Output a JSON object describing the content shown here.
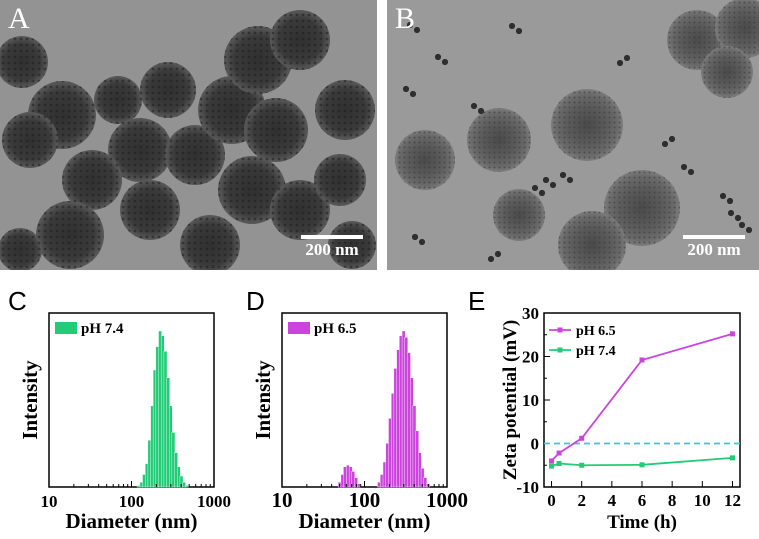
{
  "panels": {
    "a": {
      "letter": "A",
      "scale_label": "200 nm"
    },
    "b": {
      "letter": "B",
      "scale_label": "200 nm"
    },
    "c": {
      "letter": "C"
    },
    "d": {
      "letter": "D"
    },
    "e": {
      "letter": "E"
    }
  },
  "colors": {
    "green": "#22cc77",
    "magenta": "#cc44dd",
    "zero_line": "#33cccc"
  },
  "chart_data": [
    {
      "type": "bar",
      "panel": "C",
      "xlabel": "Diameter (nm)",
      "ylabel": "Intensity",
      "xscale": "log",
      "xlim": [
        10,
        1000
      ],
      "xticks": [
        "10",
        "100",
        "1000"
      ],
      "legend": "pH 7.4",
      "series": [
        {
          "name": "pH 7.4",
          "x": [
            122,
            132,
            142,
            153,
            165,
            178,
            191,
            206,
            222,
            239,
            258,
            278,
            299,
            322,
            347,
            374,
            403,
            434,
            468
          ],
          "values": [
            1,
            3,
            8,
            15,
            30,
            52,
            75,
            90,
            100,
            97,
            87,
            70,
            52,
            35,
            22,
            13,
            7,
            3,
            1
          ]
        }
      ]
    },
    {
      "type": "bar",
      "panel": "D",
      "xlabel": "Diameter (nm)",
      "ylabel": "Intensity",
      "xscale": "log",
      "xlim": [
        10,
        1000
      ],
      "xticks": [
        "10",
        "100",
        "1000"
      ],
      "legend": "pH 6.5",
      "series": [
        {
          "name": "pH 6.5",
          "x": [
            50,
            54,
            58,
            63,
            68,
            73,
            79,
            85,
            150,
            162,
            175,
            189,
            204,
            220,
            237,
            256,
            276,
            298,
            321,
            346,
            374,
            403,
            435,
            469,
            506,
            546,
            589
          ],
          "values": [
            3,
            8,
            13,
            14,
            13,
            10,
            6,
            2,
            3,
            8,
            16,
            28,
            44,
            60,
            76,
            88,
            97,
            100,
            96,
            86,
            70,
            52,
            36,
            22,
            12,
            6,
            2
          ]
        }
      ]
    },
    {
      "type": "line",
      "panel": "E",
      "xlabel": "Time (h)",
      "ylabel": "Zeta potential (mV)",
      "xlim": [
        -0.5,
        12.5
      ],
      "ylim": [
        -10,
        30
      ],
      "xticks": [
        0,
        2,
        4,
        6,
        8,
        10,
        12
      ],
      "yticks": [
        -10,
        0,
        10,
        20,
        30
      ],
      "legend_position": "top-left",
      "reference_line": 0,
      "series": [
        {
          "name": "pH 6.5",
          "x": [
            0,
            0.5,
            2,
            6,
            12
          ],
          "values": [
            -4,
            -2.2,
            1.2,
            19.2,
            25.2
          ]
        },
        {
          "name": "pH 7.4",
          "x": [
            0,
            0.5,
            2,
            6,
            12
          ],
          "values": [
            -5.2,
            -4.6,
            -5.0,
            -4.9,
            -3.3
          ]
        }
      ]
    }
  ]
}
